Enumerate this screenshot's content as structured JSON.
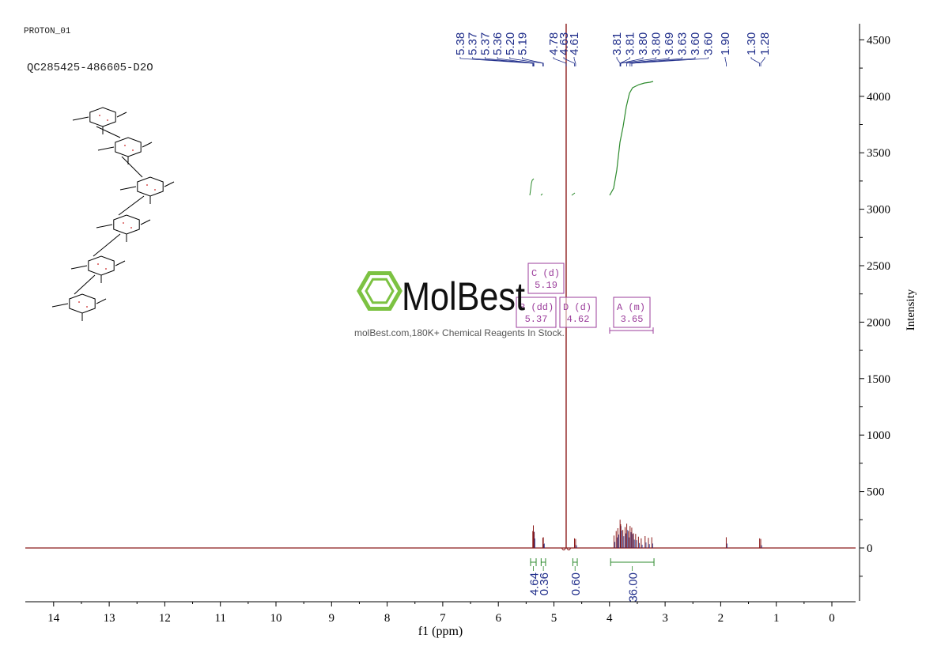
{
  "header": {
    "experiment": "PROTON_01",
    "sample_id": "QC285425-486605-D2O"
  },
  "watermark": {
    "brand": "MolBest",
    "tagline": "molBest.com,180K+ Chemical Reagents In Stock."
  },
  "colors": {
    "spectrum": "#8b1a1a",
    "peak_labels": "#1f2d8a",
    "integral": "#2e8b2e",
    "multiplet_box": "#9b3d9b",
    "axis": "#000000",
    "logo": "#7cc242",
    "structure_bonds": "#000000",
    "structure_atom_numbers": "#cc2222"
  },
  "chart_data": {
    "type": "line",
    "title": "",
    "xlabel": "f1 (ppm)",
    "ylabel": "Intensity",
    "xlim": [
      14.5,
      -0.4
    ],
    "ylim": [
      -480,
      4650
    ],
    "x_reversed": true,
    "grid": false,
    "xticks": [
      14,
      13,
      12,
      11,
      10,
      9,
      8,
      7,
      6,
      5,
      4,
      3,
      2,
      1,
      0
    ],
    "yticks": [
      0,
      500,
      1000,
      1500,
      2000,
      2500,
      3000,
      3500,
      4000,
      4500
    ],
    "peaks": [
      {
        "ppm": 5.38,
        "intensity": 150
      },
      {
        "ppm": 5.37,
        "intensity": 200
      },
      {
        "ppm": 5.36,
        "intensity": 140
      },
      {
        "ppm": 5.2,
        "intensity": 90
      },
      {
        "ppm": 5.19,
        "intensity": 95
      },
      {
        "ppm": 4.78,
        "intensity": 4650
      },
      {
        "ppm": 4.63,
        "intensity": 85
      },
      {
        "ppm": 4.61,
        "intensity": 80
      },
      {
        "ppm": 3.92,
        "intensity": 110
      },
      {
        "ppm": 3.88,
        "intensity": 150
      },
      {
        "ppm": 3.85,
        "intensity": 175
      },
      {
        "ppm": 3.81,
        "intensity": 250
      },
      {
        "ppm": 3.8,
        "intensity": 210
      },
      {
        "ppm": 3.76,
        "intensity": 160
      },
      {
        "ppm": 3.72,
        "intensity": 185
      },
      {
        "ppm": 3.69,
        "intensity": 215
      },
      {
        "ppm": 3.66,
        "intensity": 150
      },
      {
        "ppm": 3.63,
        "intensity": 195
      },
      {
        "ppm": 3.6,
        "intensity": 180
      },
      {
        "ppm": 3.57,
        "intensity": 130
      },
      {
        "ppm": 3.53,
        "intensity": 125
      },
      {
        "ppm": 3.48,
        "intensity": 100
      },
      {
        "ppm": 3.43,
        "intensity": 85
      },
      {
        "ppm": 3.36,
        "intensity": 105
      },
      {
        "ppm": 3.3,
        "intensity": 90
      },
      {
        "ppm": 3.24,
        "intensity": 95
      },
      {
        "ppm": 1.9,
        "intensity": 95
      },
      {
        "ppm": 1.3,
        "intensity": 85
      },
      {
        "ppm": 1.28,
        "intensity": 80
      }
    ],
    "peak_labels": [
      "5.38",
      "5.37",
      "5.37",
      "5.36",
      "5.20",
      "5.19",
      "4.78",
      "4.63",
      "4.61",
      "3.81",
      "3.81",
      "3.80",
      "3.80",
      "3.69",
      "3.63",
      "3.60",
      "3.60",
      "1.90",
      "1.30",
      "1.28"
    ],
    "multiplets": [
      {
        "label": "C",
        "kind": "(d)",
        "shift": "5.19"
      },
      {
        "label": "B",
        "kind": "(dd)",
        "shift": "5.37"
      },
      {
        "label": "D",
        "kind": "(d)",
        "shift": "4.62"
      },
      {
        "label": "A",
        "kind": "(m)",
        "shift": "3.65"
      }
    ],
    "integrals": [
      {
        "from": 5.42,
        "to": 5.32,
        "value": "4.64"
      },
      {
        "from": 5.23,
        "to": 5.15,
        "value": "0.36"
      },
      {
        "from": 4.66,
        "to": 4.58,
        "value": "0.60"
      },
      {
        "from": 3.98,
        "to": 3.2,
        "value": "36.00"
      }
    ]
  }
}
